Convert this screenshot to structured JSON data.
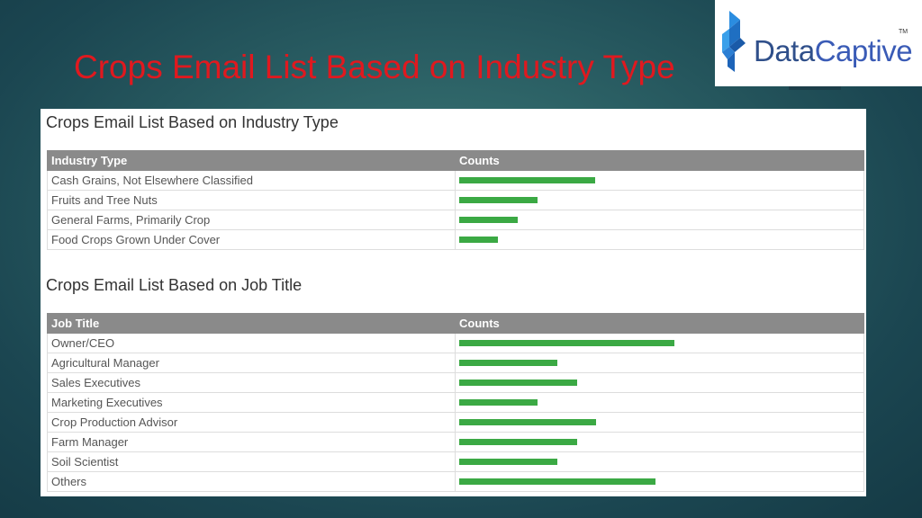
{
  "slide": {
    "title": "Crops Email List Based on Industry Type"
  },
  "logo": {
    "brand_first": "Data",
    "brand_second": "Captive",
    "tm": "TM"
  },
  "colors": {
    "title": "#e0191f",
    "bar": "#3ba944",
    "header_bg": "#8a8a8a"
  },
  "industry_section": {
    "heading": "Crops Email List Based on Industry Type",
    "col1_header": "Industry Type",
    "col2_header": "Counts",
    "rows": [
      {
        "label": "Cash Grains, Not Elsewhere Classified",
        "count": 0.34
      },
      {
        "label": "Fruits and Tree Nuts",
        "count": 0.195
      },
      {
        "label": "General Farms, Primarily Crop",
        "count": 0.147
      },
      {
        "label": "Food Crops Grown Under Cover",
        "count": 0.096
      }
    ]
  },
  "job_section": {
    "heading": "Crops Email List Based on Job Title",
    "col1_header": "Job Title",
    "col2_header": "Counts",
    "rows": [
      {
        "label": "Owner/CEO",
        "count": 0.538
      },
      {
        "label": "Agricultural Manager",
        "count": 0.245
      },
      {
        "label": "Sales Executives",
        "count": 0.294
      },
      {
        "label": "Marketing Executives",
        "count": 0.195
      },
      {
        "label": "Crop Production Advisor",
        "count": 0.342
      },
      {
        "label": "Farm Manager",
        "count": 0.294
      },
      {
        "label": "Soil Scientist",
        "count": 0.245
      },
      {
        "label": "Others",
        "count": 0.49
      }
    ]
  }
}
